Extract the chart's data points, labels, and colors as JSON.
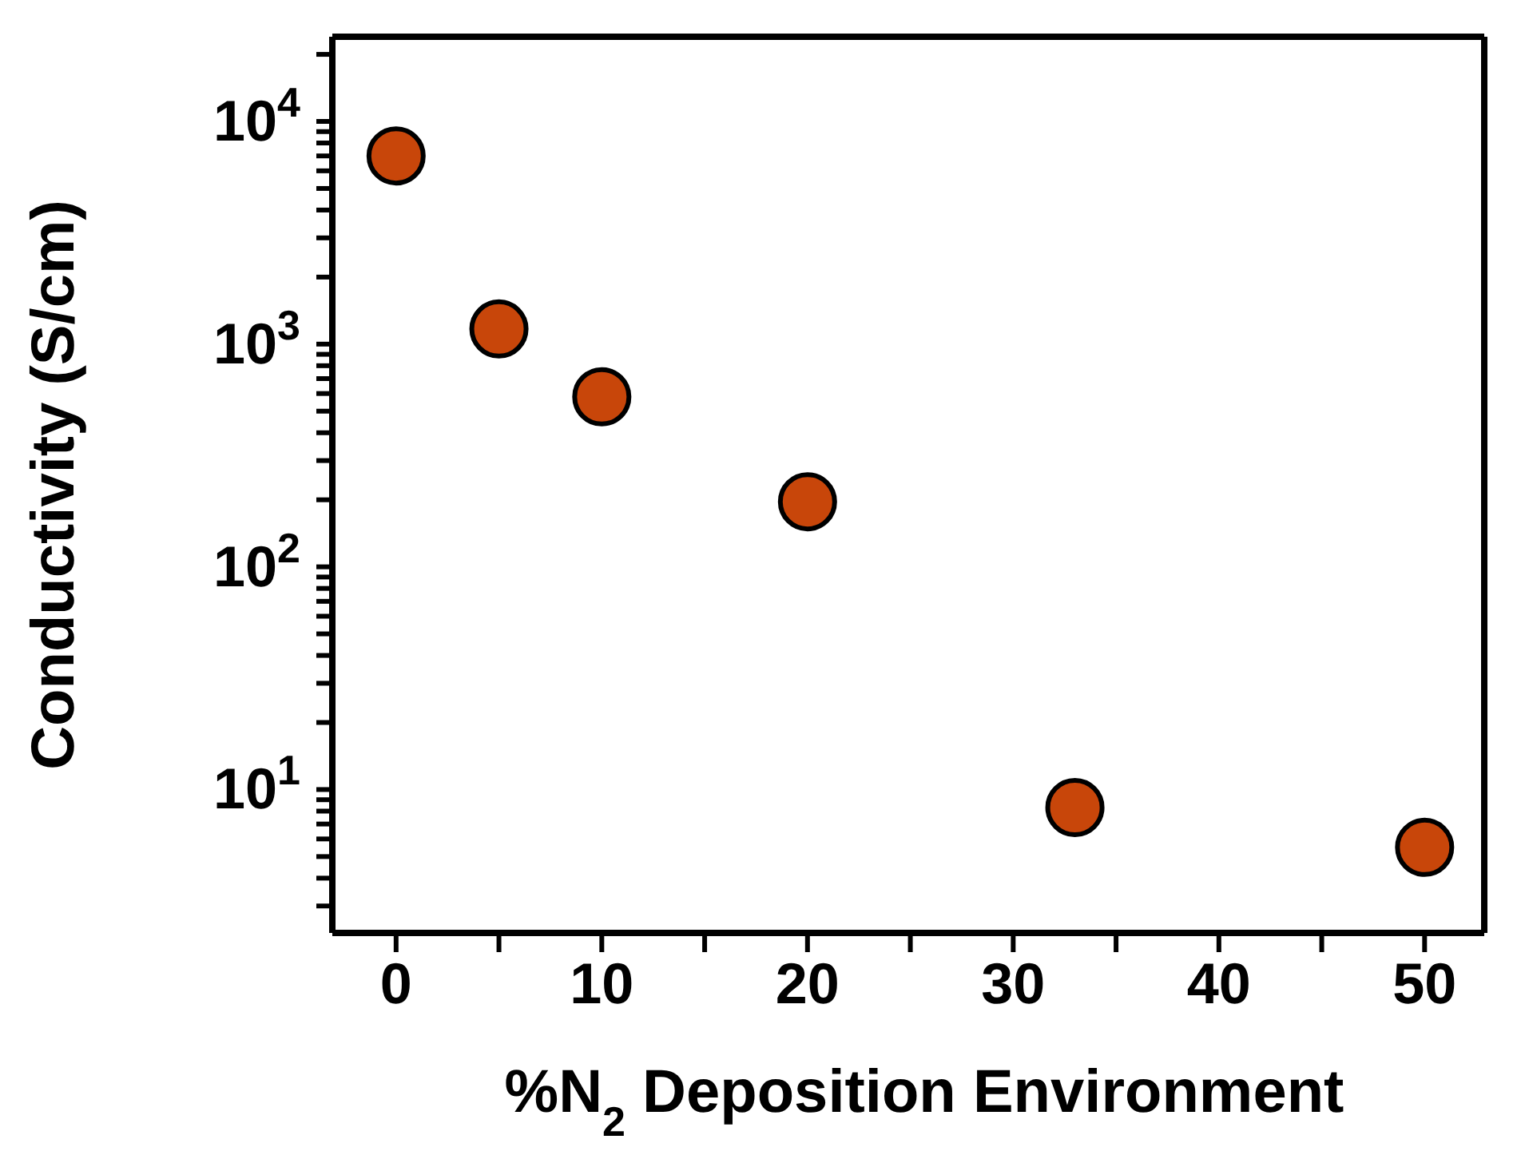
{
  "chart_data": {
    "type": "scatter",
    "xlabel": "%N$_{2}$ Deposition Environment",
    "ylabel": "Conductivity (S/cm)",
    "x": [
      0,
      5,
      10,
      20,
      33,
      50
    ],
    "series": [
      {
        "color": "#c8460a",
        "values": [
          7000,
          1170,
          580,
          196,
          8.3,
          5.5
        ]
      }
    ],
    "marker": "circle",
    "log": "y",
    "legend": false,
    "xlim": [
      -3.1,
      52.9
    ],
    "xticks": [
      0,
      {
        "value": 5,
        "label": null
      },
      10,
      {
        "value": 15,
        "label": null
      },
      20,
      {
        "value": 25,
        "label": null
      },
      30,
      {
        "value": 35,
        "label": null
      },
      40,
      {
        "value": 45,
        "label": null
      },
      50
    ],
    "ylim": [
      2.27,
      24000
    ],
    "yticks": [
      {
        "value": 3,
        "label": null
      },
      {
        "value": 4,
        "label": null
      },
      {
        "value": 5,
        "label": null
      },
      {
        "value": 6,
        "label": null
      },
      {
        "value": 7,
        "label": null
      },
      {
        "value": 8,
        "label": null
      },
      {
        "value": 9,
        "label": null
      },
      {
        "value": 10,
        "label": "10$^{1}$"
      },
      {
        "value": 20,
        "label": null
      },
      {
        "value": 30,
        "label": null
      },
      {
        "value": 40,
        "label": null
      },
      {
        "value": 50,
        "label": null
      },
      {
        "value": 60,
        "label": null
      },
      {
        "value": 70,
        "label": null
      },
      {
        "value": 80,
        "label": null
      },
      {
        "value": 90,
        "label": null
      },
      {
        "value": 100,
        "label": "10$^{2}$"
      },
      {
        "value": 200,
        "label": null
      },
      {
        "value": 300,
        "label": null
      },
      {
        "value": 400,
        "label": null
      },
      {
        "value": 500,
        "label": null
      },
      {
        "value": 600,
        "label": null
      },
      {
        "value": 700,
        "label": null
      },
      {
        "value": 800,
        "label": null
      },
      {
        "value": 900,
        "label": null
      },
      {
        "value": 1000,
        "label": "10$^{3}$"
      },
      {
        "value": 2000,
        "label": null
      },
      {
        "value": 3000,
        "label": null
      },
      {
        "value": 4000,
        "label": null
      },
      {
        "value": 5000,
        "label": null
      },
      {
        "value": 6000,
        "label": null
      },
      {
        "value": 7000,
        "label": null
      },
      {
        "value": 8000,
        "label": null
      },
      {
        "value": 9000,
        "label": null
      },
      {
        "value": 10000,
        "label": "10$^{4}$"
      },
      {
        "value": 20000,
        "label": null
      }
    ]
  }
}
